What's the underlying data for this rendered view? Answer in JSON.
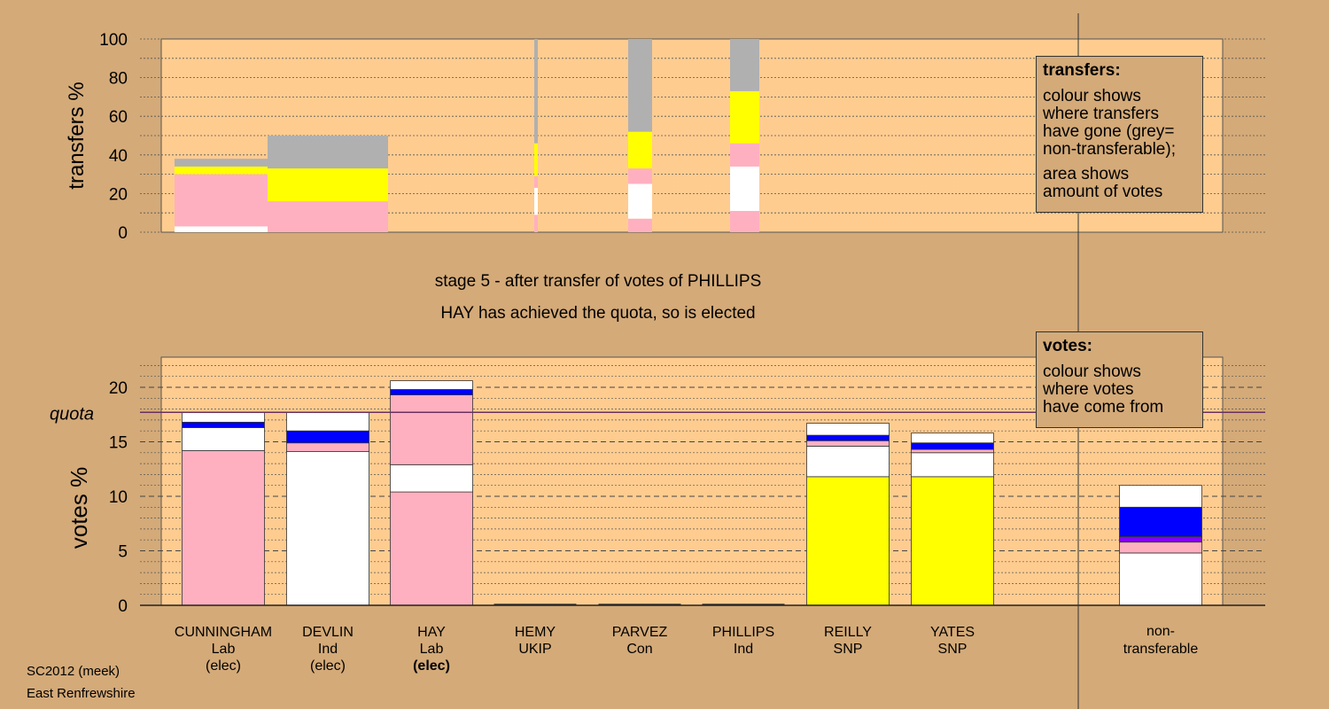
{
  "stage_title": "stage 5 - after transfer of votes of PHILLIPS",
  "stage_subtitle": "HAY has achieved the quota, so is elected",
  "legend_transfers": {
    "title": "transfers:",
    "lines": [
      "colour shows",
      "where transfers",
      "have gone (grey=",
      "non-transferable);"
    ],
    "lines2": [
      "area shows",
      "amount of votes"
    ]
  },
  "legend_votes": {
    "title": "votes:",
    "lines": [
      "colour shows",
      "where votes",
      "have come from"
    ]
  },
  "footer": {
    "line1": "SC2012 (meek)",
    "line2": "East Renfrewshire"
  },
  "colors": {
    "pink": "#ffb0c0",
    "white": "#ffffff",
    "blue": "#0000ff",
    "purple": "#8000ff",
    "yellow": "#ffff00",
    "grey": "#b0b0b0",
    "plot_bg": "#ffcc90",
    "page_bg": "#d4aa78"
  },
  "chart_data": [
    {
      "type": "bar",
      "name": "transfers",
      "ylabel": "transfers %",
      "ylim": [
        0,
        100
      ],
      "yticks": [
        0,
        20,
        40,
        60,
        80,
        100
      ],
      "grid": true,
      "note": "stacked transfer percentages, widths proportional to votes",
      "bars": [
        {
          "segments": [
            {
              "color": "white",
              "value": 3
            },
            {
              "color": "pink",
              "value": 27
            },
            {
              "color": "yellow",
              "value": 4
            },
            {
              "color": "grey",
              "value": 4
            }
          ]
        },
        {
          "segments": [
            {
              "color": "pink",
              "value": 16
            },
            {
              "color": "yellow",
              "value": 17
            },
            {
              "color": "grey",
              "value": 17
            }
          ]
        },
        {
          "segments": [
            {
              "color": "pink",
              "value": 9
            },
            {
              "color": "white",
              "value": 14
            },
            {
              "color": "pink",
              "value": 6
            },
            {
              "color": "yellow",
              "value": 17
            },
            {
              "color": "grey",
              "value": 54
            }
          ]
        },
        {
          "segments": [
            {
              "color": "pink",
              "value": 7
            },
            {
              "color": "white",
              "value": 18
            },
            {
              "color": "pink",
              "value": 8
            },
            {
              "color": "yellow",
              "value": 19
            },
            {
              "color": "grey",
              "value": 48
            }
          ]
        },
        {
          "segments": [
            {
              "color": "pink",
              "value": 11
            },
            {
              "color": "white",
              "value": 23
            },
            {
              "color": "pink",
              "value": 12
            },
            {
              "color": "yellow",
              "value": 27
            },
            {
              "color": "grey",
              "value": 27
            }
          ]
        }
      ]
    },
    {
      "type": "bar",
      "name": "votes",
      "ylabel": "votes %",
      "ylim": [
        0,
        22
      ],
      "yticks": [
        0,
        5,
        10,
        15,
        20
      ],
      "quota": 17.7,
      "quota_label": "quota",
      "grid": true,
      "candidates": [
        {
          "name": "CUNNINGHAM",
          "party": "Lab",
          "status": "(elec)",
          "bold": false,
          "segments": [
            {
              "color": "pink",
              "value": 14.2
            },
            {
              "color": "white",
              "value": 2.1
            },
            {
              "color": "blue",
              "value": 0.5
            },
            {
              "color": "white",
              "value": 0.9
            }
          ]
        },
        {
          "name": "DEVLIN",
          "party": "Ind",
          "status": "(elec)",
          "bold": false,
          "segments": [
            {
              "color": "white",
              "value": 14.1
            },
            {
              "color": "pink",
              "value": 0.8
            },
            {
              "color": "blue",
              "value": 1.1
            },
            {
              "color": "white",
              "value": 1.7
            }
          ]
        },
        {
          "name": "HAY",
          "party": "Lab",
          "status": "(elec)",
          "bold": true,
          "segments": [
            {
              "color": "pink",
              "value": 10.4
            },
            {
              "color": "white",
              "value": 2.5
            },
            {
              "color": "pink",
              "value": 6.4
            },
            {
              "color": "blue",
              "value": 0.5
            },
            {
              "color": "white",
              "value": 0.8
            }
          ]
        },
        {
          "name": "HEMY",
          "party": "UKIP",
          "status": "",
          "bold": false,
          "segments": []
        },
        {
          "name": "PARVEZ",
          "party": "Con",
          "status": "",
          "bold": false,
          "segments": []
        },
        {
          "name": "PHILLIPS",
          "party": "Ind",
          "status": "",
          "bold": false,
          "segments": []
        },
        {
          "name": "REILLY",
          "party": "SNP",
          "status": "",
          "bold": false,
          "segments": [
            {
              "color": "yellow",
              "value": 11.8
            },
            {
              "color": "white",
              "value": 2.8
            },
            {
              "color": "pink",
              "value": 0.5
            },
            {
              "color": "blue",
              "value": 0.5
            },
            {
              "color": "white",
              "value": 1.1
            }
          ]
        },
        {
          "name": "YATES",
          "party": "SNP",
          "status": "",
          "bold": false,
          "segments": [
            {
              "color": "yellow",
              "value": 11.8
            },
            {
              "color": "white",
              "value": 2.2
            },
            {
              "color": "pink",
              "value": 0.3
            },
            {
              "color": "blue",
              "value": 0.6
            },
            {
              "color": "white",
              "value": 0.9
            }
          ]
        }
      ],
      "nontransferable": {
        "label1": "non-",
        "label2": "transferable",
        "segments": [
          {
            "color": "white",
            "value": 4.8
          },
          {
            "color": "pink",
            "value": 1.0
          },
          {
            "color": "purple",
            "value": 0.5
          },
          {
            "color": "blue",
            "value": 2.7
          },
          {
            "color": "white",
            "value": 2.0
          }
        ]
      }
    }
  ]
}
